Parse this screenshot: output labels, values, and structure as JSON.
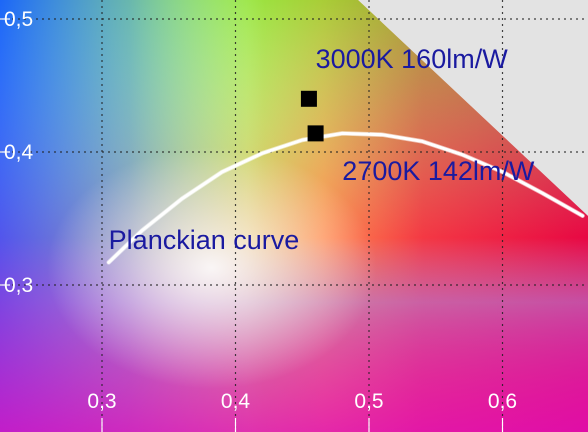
{
  "chart_data": {
    "type": "scatter",
    "title": "",
    "xlabel": "",
    "ylabel": "",
    "xlim": [
      0.26,
      0.67
    ],
    "ylim": [
      0.28,
      0.53
    ],
    "grid": true,
    "x_ticks": [
      0.3,
      0.4,
      0.5,
      0.6
    ],
    "x_tick_labels": [
      "0,3",
      "0,4",
      "0,5",
      "0,6"
    ],
    "y_ticks": [
      0.3,
      0.4,
      0.5
    ],
    "y_tick_labels": [
      "0,3",
      "0,4",
      "0,5"
    ],
    "series": [
      {
        "kind": "points",
        "color": "#000000",
        "points": [
          {
            "x": 0.455,
            "y": 0.44
          },
          {
            "x": 0.46,
            "y": 0.414
          }
        ]
      },
      {
        "kind": "curve",
        "color": "#ffffff",
        "x": [
          0.305,
          0.33,
          0.36,
          0.39,
          0.42,
          0.45,
          0.48,
          0.51,
          0.54,
          0.57,
          0.6,
          0.63,
          0.66
        ],
        "y": [
          0.317,
          0.341,
          0.365,
          0.385,
          0.399,
          0.409,
          0.414,
          0.413,
          0.408,
          0.398,
          0.385,
          0.369,
          0.352
        ]
      }
    ],
    "annotations": [
      {
        "text": "3000K 160lm/W",
        "x": 0.46,
        "y": 0.463
      },
      {
        "text": "2700K 142lm/W",
        "x": 0.48,
        "y": 0.379
      },
      {
        "text": "Planckian curve",
        "x": 0.305,
        "y": 0.327
      }
    ],
    "colors": {
      "label_text": "#1a1aa0",
      "tick_text": "#ffffff",
      "grid": "#222222",
      "outside_gamut": "#e3e3e3"
    }
  }
}
